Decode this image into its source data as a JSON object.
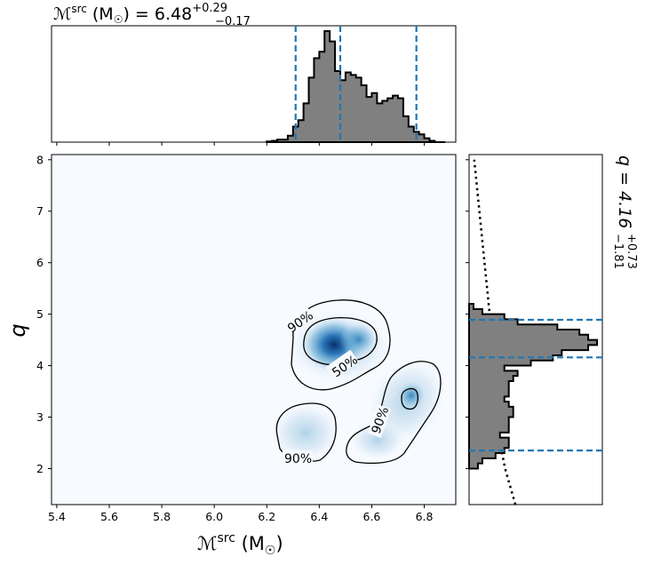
{
  "title_top": {
    "lhs": "ℳ",
    "sup_src": "src",
    "unit_open": " (M",
    "sub_sun": "☉",
    "unit_close": ") = 6.48",
    "err_plus": "+0.29",
    "err_minus": "−0.17"
  },
  "title_right": {
    "lhs": "q = 4.16",
    "err_plus": "+0.73",
    "err_minus": "−1.81"
  },
  "x_axis": {
    "label_main": "ℳ",
    "label_sup": "src",
    "label_unit_open": " (M",
    "label_sub": "☉",
    "label_unit_close": ")",
    "ticks": [
      "5.4",
      "5.6",
      "5.8",
      "6.0",
      "6.2",
      "6.4",
      "6.6",
      "6.8"
    ]
  },
  "y_axis": {
    "label": "q",
    "ticks": [
      "2",
      "3",
      "4",
      "5",
      "6",
      "7",
      "8"
    ]
  },
  "contour_labels": {
    "upper_90": "90%",
    "upper_50": "50%",
    "lower_left_90": "90%",
    "lower_right_90": "90%"
  },
  "colors": {
    "hist_fill": "#808080",
    "hist_edge": "#000000",
    "credible_line": "#1f77b4",
    "density_high": "#08306b",
    "density_low": "#f7fbff"
  },
  "chart_data": {
    "type": "corner",
    "mc_marginal": {
      "type": "histogram",
      "bin_edges": [
        6.2,
        6.22,
        6.24,
        6.26,
        6.28,
        6.3,
        6.32,
        6.34,
        6.36,
        6.38,
        6.4,
        6.42,
        6.44,
        6.46,
        6.48,
        6.5,
        6.52,
        6.54,
        6.56,
        6.58,
        6.6,
        6.62,
        6.64,
        6.66,
        6.68,
        6.7,
        6.72,
        6.74,
        6.76,
        6.78,
        6.8,
        6.82,
        6.84,
        6.86,
        6.88
      ],
      "counts": [
        0.5,
        1,
        2,
        2,
        5,
        12,
        17,
        30,
        50,
        65,
        70,
        86,
        78,
        55,
        48,
        54,
        52,
        50,
        44,
        35,
        38,
        30,
        32,
        34,
        36,
        34,
        20,
        12,
        8,
        6,
        3,
        1,
        0,
        0
      ],
      "credible_interval": [
        6.31,
        6.48,
        6.77
      ],
      "median": 6.48,
      "err_plus": 0.29,
      "err_minus": 0.17
    },
    "q_marginal": {
      "type": "histogram",
      "orientation": "horizontal",
      "bin_edges": [
        2.0,
        2.1,
        2.2,
        2.3,
        2.4,
        2.5,
        2.6,
        2.7,
        2.8,
        2.9,
        3.0,
        3.1,
        3.2,
        3.3,
        3.4,
        3.5,
        3.6,
        3.7,
        3.8,
        3.9,
        4.0,
        4.1,
        4.2,
        4.3,
        4.4,
        4.5,
        4.6,
        4.7,
        4.8,
        4.9,
        5.0,
        5.1,
        5.2
      ],
      "counts": [
        2,
        3,
        6,
        8,
        9,
        9,
        7,
        9,
        9,
        9,
        10,
        10,
        9,
        8,
        9,
        9,
        9,
        10,
        11,
        8,
        14,
        19,
        21,
        27,
        29,
        27,
        25,
        20,
        11,
        8,
        3,
        1
      ],
      "credible_interval": [
        2.35,
        4.16,
        4.89
      ],
      "median": 4.16,
      "err_plus": 0.73,
      "err_minus": 1.81,
      "prior": {
        "style": "dotted",
        "q": [
          1.3,
          2.0,
          2.5,
          3.0,
          3.5,
          4.0,
          5.0,
          6.0,
          7.0,
          8.0
        ],
        "density": [
          9,
          7,
          6,
          5,
          5,
          5,
          4,
          3,
          2,
          1
        ]
      }
    },
    "joint_2d": {
      "type": "density_with_contours",
      "xlim": [
        5.38,
        6.92
      ],
      "ylim": [
        1.3,
        8.1
      ],
      "levels": [
        "50%",
        "90%"
      ],
      "modes": [
        {
          "mc": 6.44,
          "q": 4.45,
          "weight": 1.0
        },
        {
          "mc": 6.53,
          "q": 4.5,
          "weight": 0.75
        },
        {
          "mc": 6.73,
          "q": 3.4,
          "weight": 0.55
        },
        {
          "mc": 6.33,
          "q": 2.65,
          "weight": 0.35
        },
        {
          "mc": 6.62,
          "q": 2.5,
          "weight": 0.3
        }
      ]
    }
  }
}
